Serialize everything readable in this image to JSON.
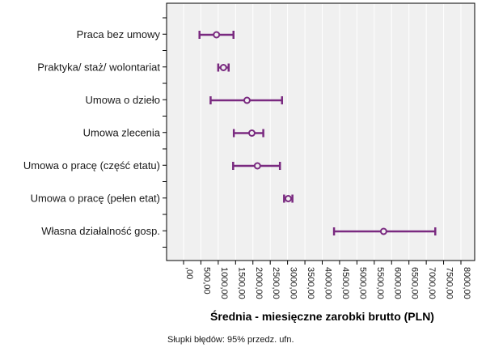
{
  "chart_data": {
    "type": "errorbar",
    "categories": [
      "Praca bez umowy",
      "Praktyka/ staż/ wolontariat",
      "Umowa o dzieło",
      "Umowa zlecenia",
      "Umowa o pracę (część etatu)",
      "Umowa o pracę (pełen etat)",
      "Własna działalność gosp."
    ],
    "series": [
      {
        "mean": [
          950,
          1150,
          1830,
          1970,
          2130,
          3020,
          5770
        ],
        "lower": [
          460,
          1000,
          780,
          1450,
          1430,
          2900,
          4340
        ],
        "upper": [
          1440,
          1300,
          2840,
          2300,
          2780,
          3140,
          7260
        ]
      }
    ],
    "xlabel": "Średnia - miesięczne zarobki brutto (PLN)",
    "xlim": [
      0,
      8000
    ],
    "xticks": [
      0,
      500,
      1000,
      1500,
      2000,
      2500,
      3000,
      3500,
      4000,
      4500,
      5000,
      5500,
      6000,
      6500,
      7000,
      7500,
      8000
    ],
    "xtick_labels": [
      ",00",
      "500,00",
      "1000,00",
      "1500,00",
      "2000,00",
      "2500,00",
      "3000,00",
      "3500,00",
      "4000,00",
      "4500,00",
      "5000,00",
      "5500,00",
      "6000,00",
      "6500,00",
      "7000,00",
      "7500,00",
      "8000,00"
    ],
    "grid": "vertical",
    "series_color": "#7a2a80",
    "plot_background": "#f0f0f0"
  },
  "footnote": "Słupki błędów: 95% przedz. ufn."
}
